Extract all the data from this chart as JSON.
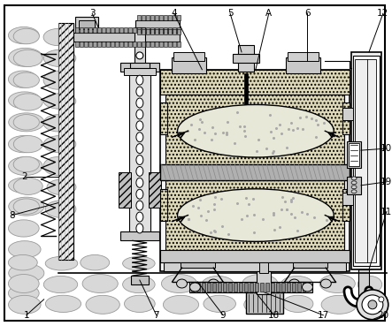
{
  "fig_width": 4.43,
  "fig_height": 3.69,
  "dpi": 100,
  "background_color": "#ffffff"
}
